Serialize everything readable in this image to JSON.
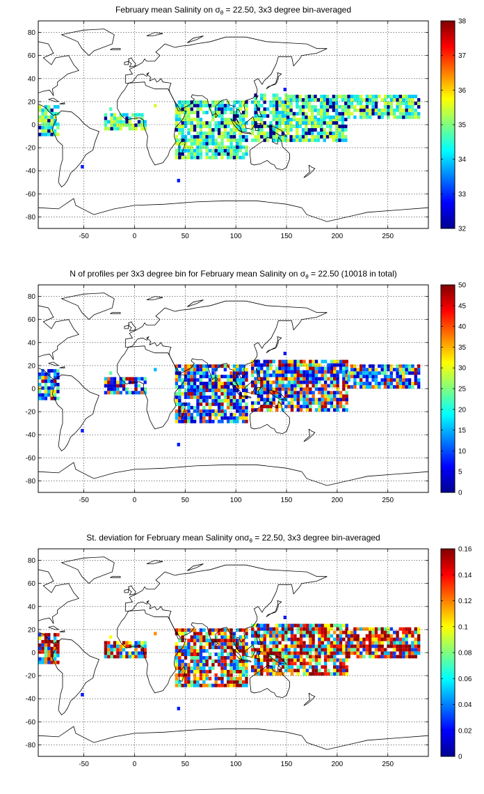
{
  "figure": {
    "colormap": "jet",
    "x_ticks": [
      -50,
      0,
      50,
      100,
      150,
      200,
      250
    ],
    "y_ticks": [
      80,
      60,
      40,
      20,
      0,
      -20,
      -40,
      -60,
      -80
    ],
    "xlim": [
      -95,
      290
    ],
    "ylim": [
      -90,
      90
    ]
  },
  "panels": [
    {
      "title_parts": [
        "February mean Salinity on ",
        "σ",
        "θ",
        " = 22.50, 3x3 degree bin-averaged"
      ],
      "colorbar": {
        "ticks": [
          "32",
          "33",
          "34",
          "35",
          "36",
          "37",
          "38"
        ],
        "min": 32,
        "max": 38
      },
      "colors": [
        "#00c8ff",
        "#7fff7f",
        "#b4ff4a",
        "#d6ff29",
        "#4affb4",
        "#1ef0e0",
        "#000090"
      ]
    },
    {
      "title_parts": [
        "N of profiles per 3x3 degree bin for February mean Salinity on ",
        "σ",
        "θ",
        " = 22.50 (10018 in total)"
      ],
      "colorbar": {
        "ticks": [
          "0",
          "5",
          "10",
          "15",
          "20",
          "25",
          "30",
          "35",
          "40",
          "45",
          "50"
        ],
        "min": 0,
        "max": 50
      },
      "colors": [
        "#0000d0",
        "#0020ff",
        "#0060ff",
        "#00c0ff",
        "#60ffa0",
        "#ffe000",
        "#ff6000",
        "#b00000",
        "#0000d0"
      ]
    },
    {
      "title_parts": [
        "St. deviation for February mean Salinity on",
        "σ",
        "θ",
        " = 22.50, 3x3 degree bin-averaged"
      ],
      "colorbar": {
        "ticks": [
          "0",
          "0.02",
          "0.04",
          "0.06",
          "0.08",
          "0.1",
          "0.12",
          "0.14",
          "0.16"
        ],
        "min": 0,
        "max": 0.16
      },
      "colors": [
        "#900000",
        "#c00000",
        "#ff2000",
        "#ff9000",
        "#ffff00",
        "#60ffa0",
        "#00c0ff",
        "#0040ff",
        "#900000"
      ]
    }
  ],
  "chart_data": [
    {
      "type": "heatmap",
      "title": "February mean Salinity on σθ = 22.50, 3x3 degree bin-averaged",
      "colorbar_range": [
        32,
        38
      ],
      "xlim": [
        -95,
        290
      ],
      "ylim": [
        -90,
        90
      ],
      "grid": true,
      "regions": [
        {
          "lon": [
            -95,
            -75
          ],
          "lat": [
            -10,
            15
          ],
          "value": 34.3
        },
        {
          "lon": [
            -30,
            10
          ],
          "lat": [
            -5,
            10
          ],
          "value": 35.1
        },
        {
          "lon": [
            40,
            110
          ],
          "lat": [
            -30,
            20
          ],
          "value": 35.0
        },
        {
          "lon": [
            115,
            150
          ],
          "lat": [
            -15,
            25
          ],
          "value": 34.5
        },
        {
          "lon": [
            150,
            210
          ],
          "lat": [
            -15,
            5
          ],
          "value": 35.3
        },
        {
          "lon": [
            150,
            280
          ],
          "lat": [
            5,
            25
          ],
          "value": 34.5
        }
      ]
    },
    {
      "type": "heatmap",
      "title": "N of profiles per 3x3 degree bin for February mean Salinity on σθ = 22.50 (10018 in total)",
      "colorbar_range": [
        0,
        50
      ],
      "xlim": [
        -95,
        290
      ],
      "ylim": [
        -90,
        90
      ],
      "grid": true,
      "regions": [
        {
          "lon": [
            -95,
            -75
          ],
          "lat": [
            -10,
            15
          ],
          "value": 5
        },
        {
          "lon": [
            -30,
            10
          ],
          "lat": [
            -5,
            10
          ],
          "value": 5
        },
        {
          "lon": [
            40,
            110
          ],
          "lat": [
            -30,
            20
          ],
          "value": 15
        },
        {
          "lon": [
            115,
            210
          ],
          "lat": [
            -20,
            25
          ],
          "value": 15
        },
        {
          "lon": [
            210,
            280
          ],
          "lat": [
            0,
            20
          ],
          "value": 10
        }
      ]
    },
    {
      "type": "heatmap",
      "title": "St. deviation for February mean Salinity on σθ = 22.50, 3x3 degree bin-averaged",
      "colorbar_range": [
        0,
        0.16
      ],
      "xlim": [
        -95,
        290
      ],
      "ylim": [
        -90,
        90
      ],
      "grid": true,
      "regions": [
        {
          "lon": [
            -95,
            -75
          ],
          "lat": [
            -10,
            15
          ],
          "value": 0.15
        },
        {
          "lon": [
            -30,
            10
          ],
          "lat": [
            -5,
            10
          ],
          "value": 0.14
        },
        {
          "lon": [
            40,
            110
          ],
          "lat": [
            -30,
            20
          ],
          "value": 0.14
        },
        {
          "lon": [
            115,
            210
          ],
          "lat": [
            -20,
            25
          ],
          "value": 0.12
        },
        {
          "lon": [
            210,
            280
          ],
          "lat": [
            -5,
            20
          ],
          "value": 0.15
        }
      ]
    }
  ]
}
